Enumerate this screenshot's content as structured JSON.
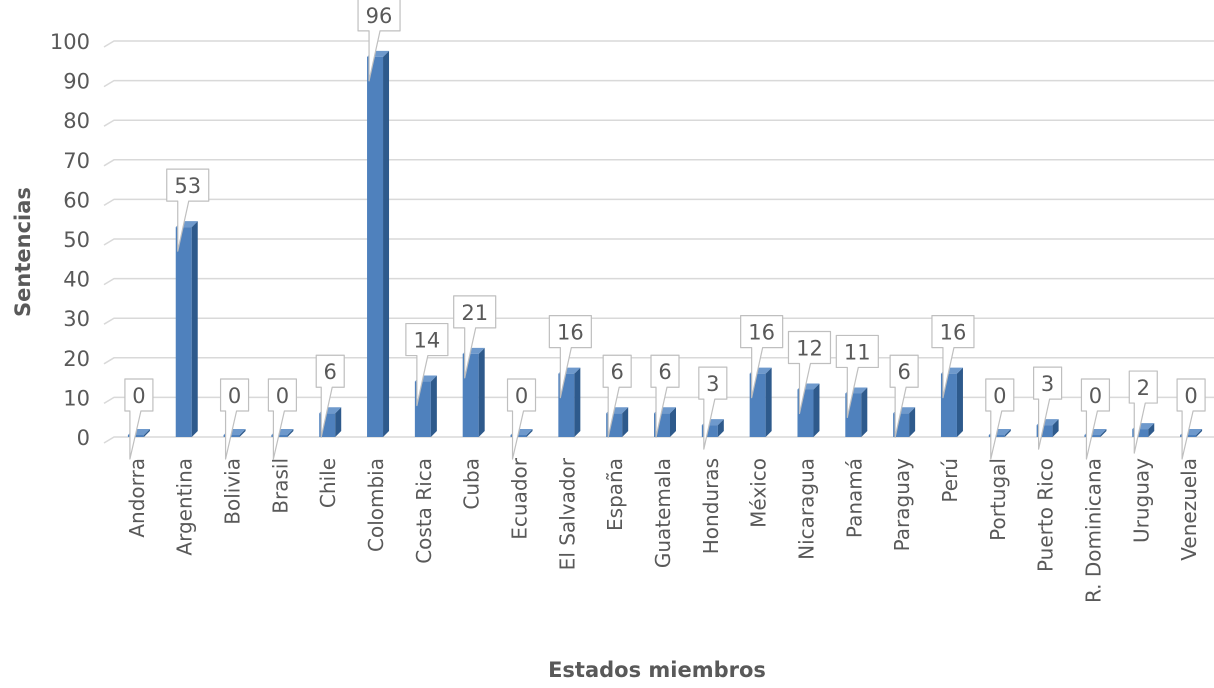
{
  "chart_data": {
    "type": "bar",
    "title": "",
    "xlabel": "Estados miembros",
    "ylabel": "Sentencias",
    "ylim": [
      0,
      100
    ],
    "yticks": [
      0,
      10,
      20,
      30,
      40,
      50,
      60,
      70,
      80,
      90,
      100
    ],
    "grid": true,
    "categories": [
      "Andorra",
      "Argentina",
      "Bolivia",
      "Brasil",
      "Chile",
      "Colombia",
      "Costa Rica",
      "Cuba",
      "Ecuador",
      "El Salvador",
      "España",
      "Guatemala",
      "Honduras",
      "México",
      "Nicaragua",
      "Panamá",
      "Paraguay",
      "Perú",
      "Portugal",
      "Puerto Rico",
      "R. Dominicana",
      "Uruguay",
      "Venezuela"
    ],
    "values": [
      0,
      53,
      0,
      0,
      6,
      96,
      14,
      21,
      0,
      16,
      6,
      6,
      3,
      16,
      12,
      11,
      6,
      16,
      0,
      3,
      0,
      2,
      0
    ],
    "data_labels": true,
    "colors": {
      "bar_front": "#4F81BD",
      "bar_side": "#2E5A8C",
      "bar_top": "#6E99CC",
      "grid": "#D9D9D9",
      "text": "#595959"
    }
  }
}
